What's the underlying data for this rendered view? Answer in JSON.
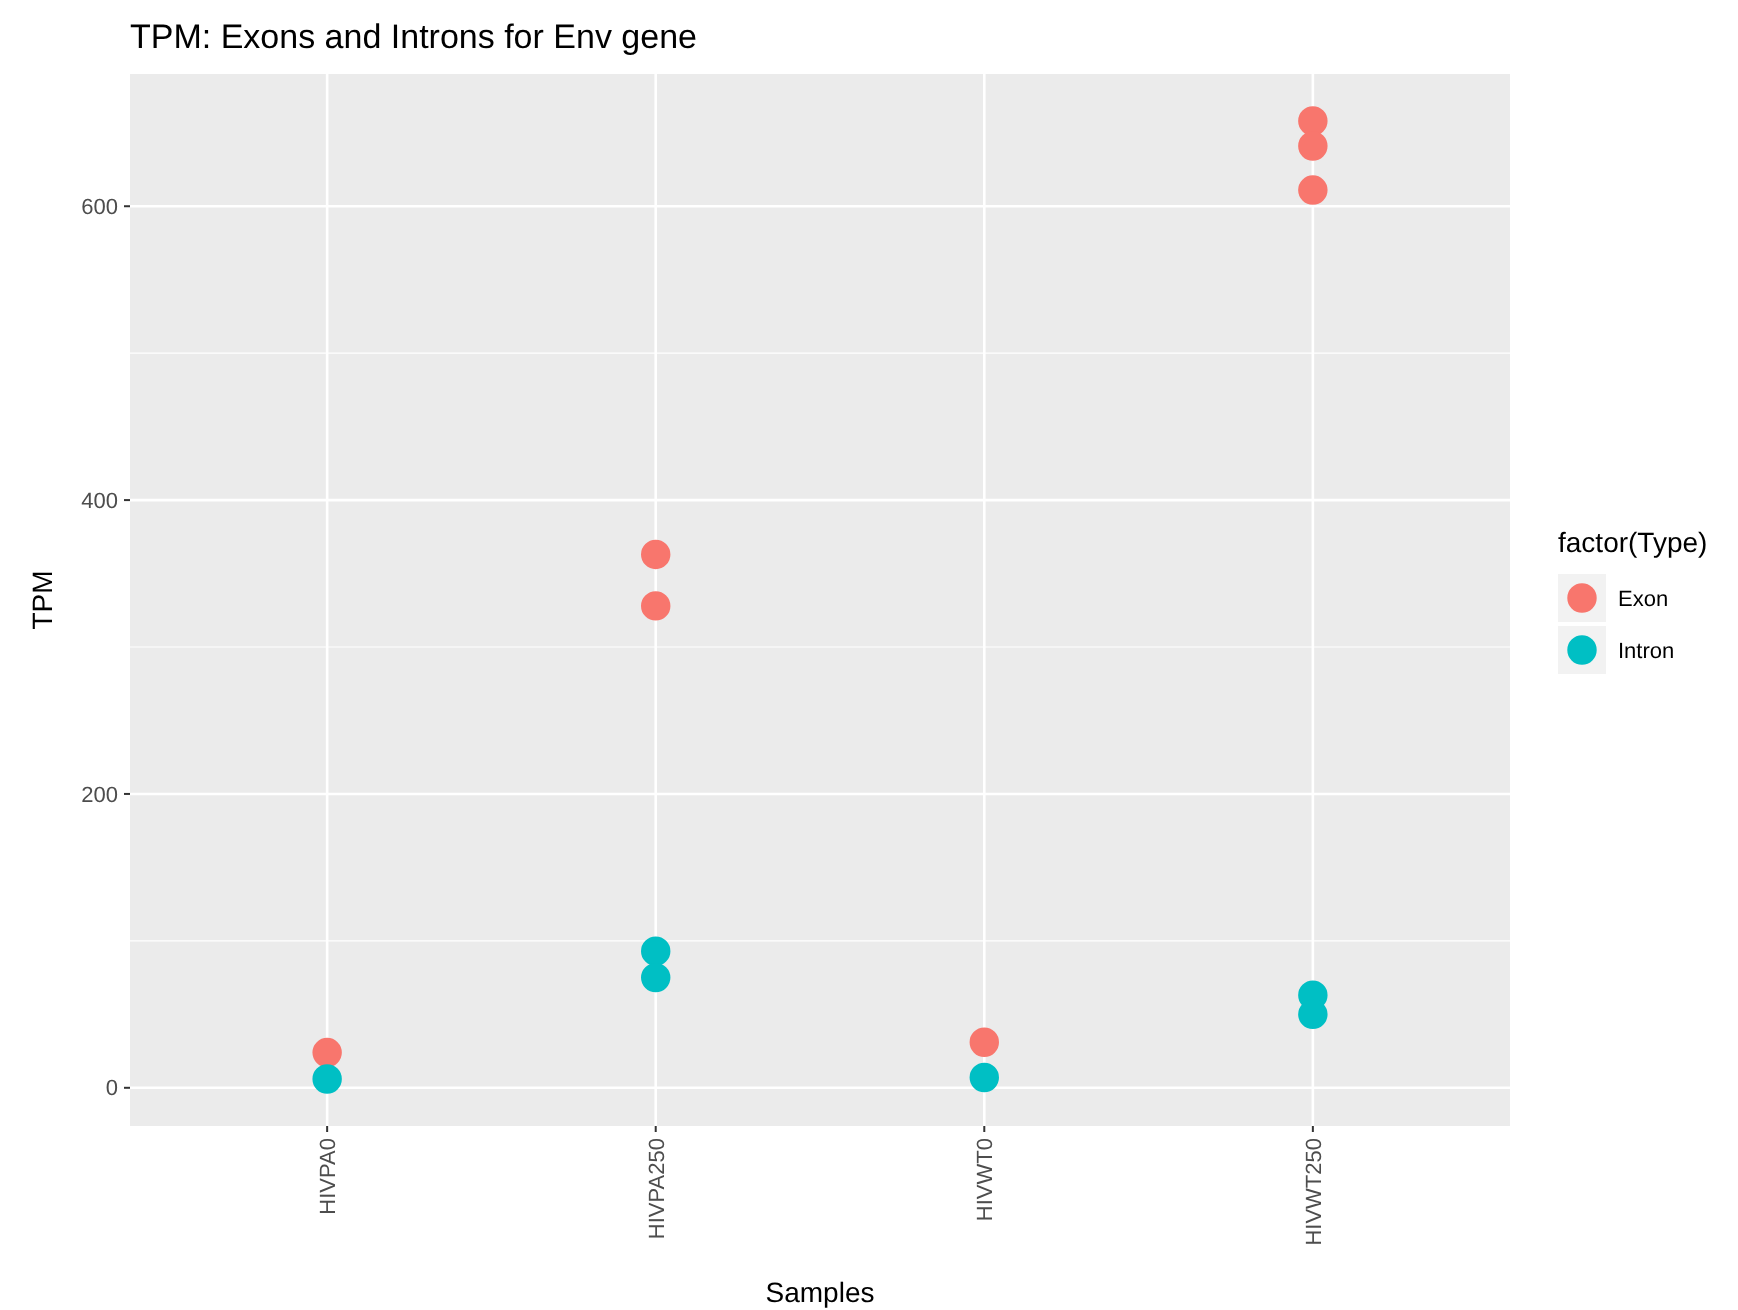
{
  "chart_data": {
    "type": "scatter",
    "title": "TPM: Exons and Introns for Env gene",
    "xlabel": "Samples",
    "ylabel": "TPM",
    "legend_title": "factor(Type)",
    "categories": [
      "HIVPA0",
      "HIVPA250",
      "HIVWT0",
      "HIVWT250"
    ],
    "series": [
      {
        "name": "Exon",
        "color": "#f8766d",
        "x": [
          "HIVPA0",
          "HIVPA250",
          "HIVPA250",
          "HIVWT0",
          "HIVWT250",
          "HIVWT250",
          "HIVWT250"
        ],
        "values": [
          24,
          363,
          328,
          31,
          658,
          641,
          611
        ]
      },
      {
        "name": "Intron",
        "color": "#00bfc4",
        "x": [
          "HIVPA0",
          "HIVPA250",
          "HIVPA250",
          "HIVWT0",
          "HIVWT250",
          "HIVWT250"
        ],
        "values": [
          6,
          93,
          75,
          7,
          63,
          50
        ]
      }
    ],
    "ylim": [
      -26,
      690
    ],
    "yticks": [
      0,
      200,
      400,
      600
    ],
    "grid": true,
    "legend": "right",
    "marker": "circle"
  }
}
